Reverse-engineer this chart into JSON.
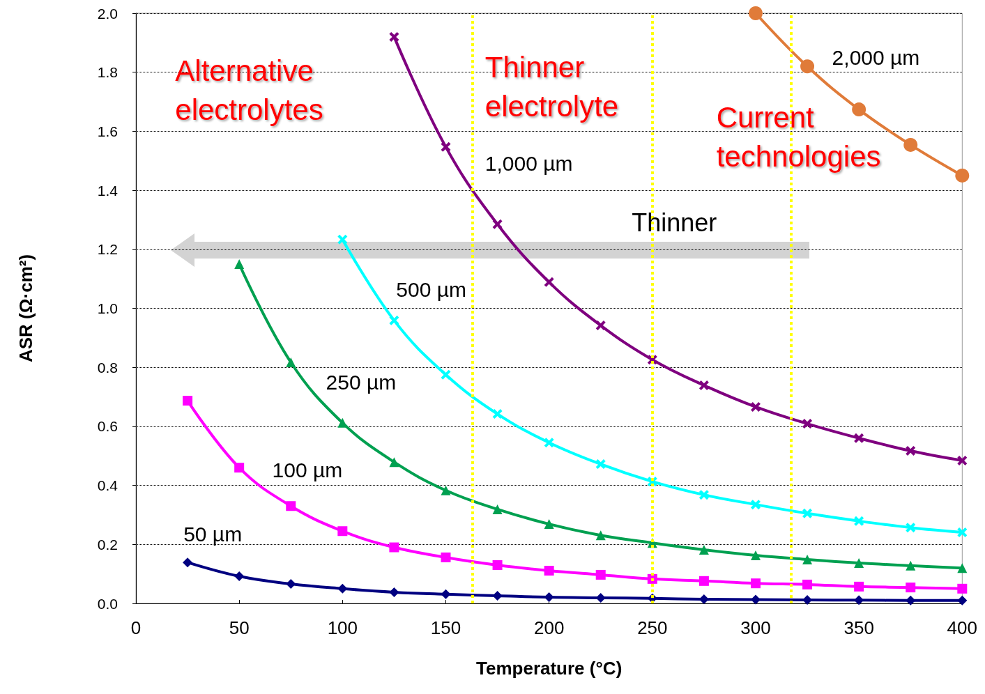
{
  "chart_data": {
    "type": "line",
    "xlabel": "Temperature (°C)",
    "ylabel": "ASR (Ω·cm²)",
    "x": [
      25,
      50,
      75,
      100,
      125,
      150,
      175,
      200,
      225,
      250,
      275,
      300,
      325,
      350,
      375,
      400
    ],
    "xlim": [
      0,
      400
    ],
    "xticks": [
      0,
      50,
      100,
      150,
      200,
      250,
      300,
      350,
      400
    ],
    "ylim": [
      0,
      2
    ],
    "yticks": [
      {
        "value": 0,
        "label": "0.0"
      },
      0.2,
      0.4,
      0.6,
      0.8,
      {
        "value": 1,
        "label": "1.0"
      },
      1.2,
      1.4,
      1.6,
      1.8,
      {
        "value": 2,
        "label": "2.0"
      }
    ],
    "grid": "y",
    "legend": false,
    "series": [
      {
        "name": "50 µm",
        "color": "#000080",
        "marker": "diamond",
        "values": [
          0.139,
          0.092,
          0.066,
          0.05,
          0.038,
          0.031,
          0.026,
          0.021,
          0.019,
          0.017,
          0.014,
          0.013,
          0.012,
          0.011,
          0.01,
          0.01
        ]
      },
      {
        "name": "100 µm",
        "color": "#ff00ff",
        "marker": "square",
        "values": [
          0.687,
          0.46,
          0.33,
          0.245,
          0.19,
          0.156,
          0.13,
          0.111,
          0.097,
          0.083,
          0.076,
          0.068,
          0.064,
          0.057,
          0.054,
          0.05
        ]
      },
      {
        "name": "250 µm",
        "color": "#00a050",
        "marker": "triangle",
        "values": [
          null,
          1.15,
          0.817,
          0.612,
          0.479,
          0.383,
          0.319,
          0.269,
          0.231,
          0.205,
          0.182,
          0.163,
          0.149,
          0.137,
          0.128,
          0.12
        ]
      },
      {
        "name": "500 µm",
        "color": "#00ffff",
        "marker": "cross",
        "values": [
          null,
          null,
          null,
          1.233,
          0.959,
          0.775,
          0.642,
          0.545,
          0.472,
          0.413,
          0.368,
          0.335,
          0.305,
          0.279,
          0.257,
          0.241
        ]
      },
      {
        "name": "1,000 µm",
        "color": "#7f007f",
        "marker": "cross",
        "values": [
          null,
          null,
          null,
          null,
          1.92,
          1.547,
          1.285,
          1.089,
          0.942,
          0.826,
          0.739,
          0.666,
          0.609,
          0.56,
          0.517,
          0.484
        ]
      },
      {
        "name": "2,000 µm",
        "color": "#e07b39",
        "marker": "circle",
        "values": [
          null,
          null,
          null,
          null,
          null,
          null,
          null,
          null,
          null,
          null,
          null,
          2.0,
          1.82,
          1.674,
          1.554,
          1.45
        ]
      }
    ],
    "ref_lines": [
      {
        "axis": "x",
        "value": 163,
        "color": "#ffff00",
        "line_style": "dotted"
      },
      {
        "axis": "x",
        "value": 250,
        "color": "#ffff00",
        "line_style": "dotted"
      },
      {
        "axis": "x",
        "value": 317,
        "color": "#ffff00",
        "line_style": "dotted"
      }
    ],
    "annotations": [
      "Thinner",
      "Alternative\nelectrolytes",
      "Thinner\nelectrolyte",
      "Current\ntechnologies"
    ]
  }
}
